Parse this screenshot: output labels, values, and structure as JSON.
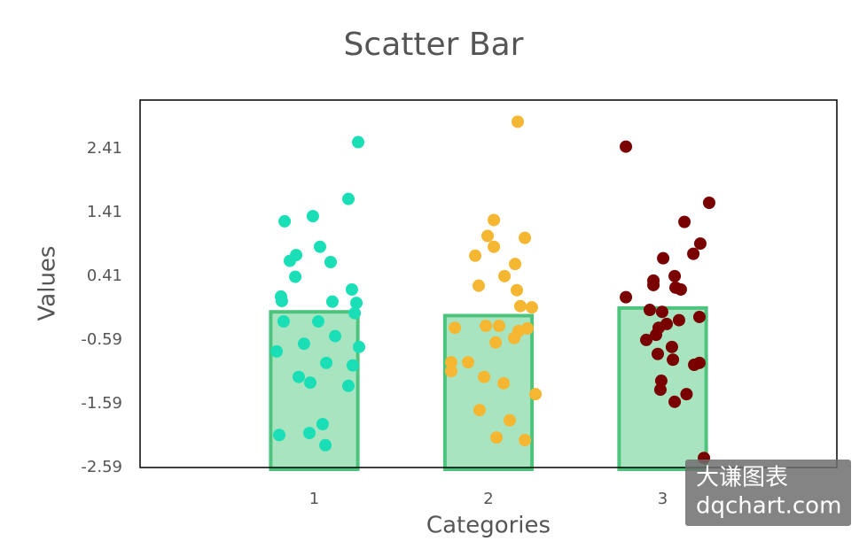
{
  "chart_data": {
    "type": "bar",
    "title": "Scatter Bar",
    "x_label": "Categories",
    "y_label": "Values",
    "xlim": [
      0,
      4
    ],
    "ylim": [
      -2.59,
      3.17
    ],
    "xticks": [
      1,
      2,
      3
    ],
    "yticks": [
      -2.59,
      -1.59,
      -0.59,
      0.41,
      1.41,
      2.41
    ],
    "bars": {
      "x": [
        1,
        2,
        3
      ],
      "values": [
        -0.15,
        -0.21,
        -0.09
      ],
      "width": 0.5,
      "color": "#a8e4c0",
      "edge_color": "#4cc47e"
    },
    "series": [
      {
        "type": "scatter",
        "color": "#1adfb6",
        "x": [
          1.252,
          1.196,
          0.83,
          0.992,
          1.033,
          0.896,
          0.86,
          1.094,
          0.891,
          1.216,
          0.809,
          0.814,
          1.104,
          1.242,
          1.232,
          0.824,
          1.023,
          1.12,
          0.941,
          1.257,
          0.784,
          1.069,
          1.221,
          0.911,
          0.977,
          1.196,
          1.048,
          0.799,
          0.972,
          1.064
        ],
        "values": [
          2.51,
          1.62,
          1.27,
          1.35,
          0.87,
          0.74,
          0.65,
          0.63,
          0.4,
          0.2,
          0.09,
          0.02,
          0.01,
          -0.01,
          -0.17,
          -0.3,
          -0.3,
          -0.53,
          -0.65,
          -0.7,
          -0.77,
          -0.95,
          -0.99,
          -1.17,
          -1.26,
          -1.31,
          -1.91,
          -2.08,
          -2.05,
          -2.24
        ]
      },
      {
        "type": "scatter",
        "color": "#f5b731",
        "x": [
          2.168,
          2.031,
          1.995,
          2.209,
          2.031,
          1.924,
          2.153,
          2.092,
          1.944,
          2.163,
          2.183,
          2.249,
          1.807,
          1.985,
          2.061,
          2.224,
          2.173,
          2.148,
          2.041,
          1.786,
          1.883,
          1.786,
          1.975,
          2.087,
          2.27,
          1.949,
          2.122,
          2.046,
          2.209
        ],
        "values": [
          2.83,
          1.29,
          1.04,
          1.01,
          0.87,
          0.73,
          0.6,
          0.41,
          0.26,
          0.19,
          -0.06,
          -0.08,
          -0.4,
          -0.37,
          -0.37,
          -0.41,
          -0.45,
          -0.56,
          -0.63,
          -0.94,
          -0.94,
          -1.08,
          -1.17,
          -1.27,
          -1.44,
          -1.69,
          -1.85,
          -2.12,
          -2.16
        ]
      },
      {
        "type": "scatter",
        "color": "#7a0000",
        "x": [
          2.789,
          3.267,
          3.125,
          3.216,
          3.003,
          3.176,
          3.069,
          2.947,
          2.947,
          3.074,
          3.104,
          2.789,
          2.926,
          2.997,
          3.211,
          3.094,
          3.023,
          2.977,
          2.962,
          2.906,
          3.053,
          2.972,
          3.059,
          3.211,
          3.181,
          2.992,
          2.987,
          3.137,
          3.069,
          3.237
        ],
        "values": [
          2.44,
          1.56,
          1.26,
          0.92,
          0.69,
          0.76,
          0.41,
          0.34,
          0.27,
          0.23,
          0.2,
          0.08,
          -0.12,
          -0.15,
          -0.23,
          -0.28,
          -0.34,
          -0.4,
          -0.51,
          -0.59,
          -0.7,
          -0.81,
          -0.9,
          -0.95,
          -0.98,
          -1.23,
          -1.37,
          -1.44,
          -1.56,
          -2.44
        ]
      }
    ],
    "watermark": [
      "大谦图表",
      "dqchart.com"
    ]
  }
}
